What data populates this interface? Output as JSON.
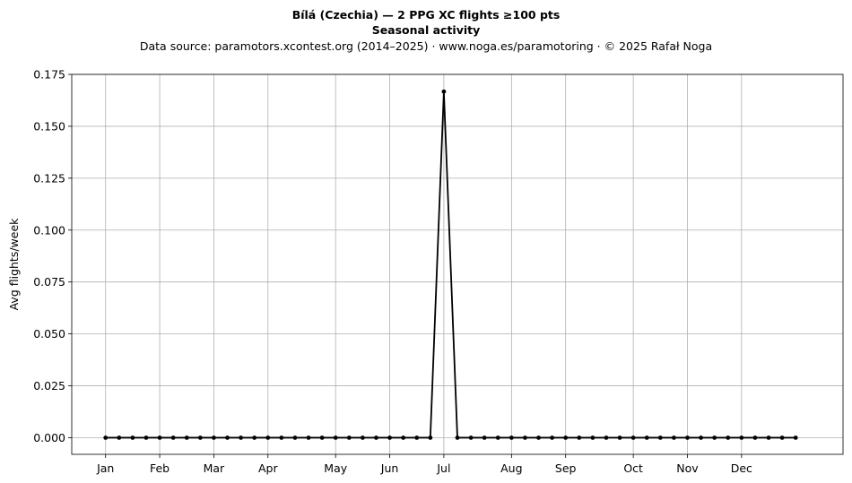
{
  "chart_data": {
    "type": "line",
    "title": "Bílá (Czechia)  —  2 PPG XC flights ≥100 pts",
    "subtitle": "Seasonal activity",
    "source": "Data source: paramotors.xcontest.org (2014–2025)  ·  www.noga.es/paramotoring  ·  © 2025 Rafał Noga",
    "xlabel": "",
    "ylabel": "Avg flights/week",
    "ylim": [
      -0.008,
      0.175
    ],
    "xlim": [
      -2.5,
      54.5
    ],
    "yticks": [
      0.0,
      0.025,
      0.05,
      0.075,
      0.1,
      0.125,
      0.15,
      0.175
    ],
    "ytick_labels": [
      "0.000",
      "0.025",
      "0.050",
      "0.075",
      "0.100",
      "0.125",
      "0.150",
      "0.175"
    ],
    "xticks": [
      0,
      4,
      8,
      12,
      17,
      21,
      25,
      30,
      34,
      39,
      43,
      47
    ],
    "xtick_labels": [
      "Jan",
      "Feb",
      "Mar",
      "Apr",
      "May",
      "Jun",
      "Jul",
      "Aug",
      "Sep",
      "Oct",
      "Nov",
      "Dec"
    ],
    "grid": true,
    "x": [
      0,
      1,
      2,
      3,
      4,
      5,
      6,
      7,
      8,
      9,
      10,
      11,
      12,
      13,
      14,
      15,
      16,
      17,
      18,
      19,
      20,
      21,
      22,
      23,
      24,
      25,
      26,
      27,
      28,
      29,
      30,
      31,
      32,
      33,
      34,
      35,
      36,
      37,
      38,
      39,
      40,
      41,
      42,
      43,
      44,
      45,
      46,
      47,
      48,
      49,
      50,
      51
    ],
    "values": [
      0,
      0,
      0,
      0,
      0,
      0,
      0,
      0,
      0,
      0,
      0,
      0,
      0,
      0,
      0,
      0,
      0,
      0,
      0,
      0,
      0,
      0,
      0,
      0,
      0,
      0.1667,
      0,
      0,
      0,
      0,
      0,
      0,
      0,
      0,
      0,
      0,
      0,
      0,
      0,
      0,
      0,
      0,
      0,
      0,
      0,
      0,
      0,
      0,
      0,
      0,
      0,
      0
    ],
    "color": "#000000",
    "grid_color": "#b0b0b0"
  }
}
